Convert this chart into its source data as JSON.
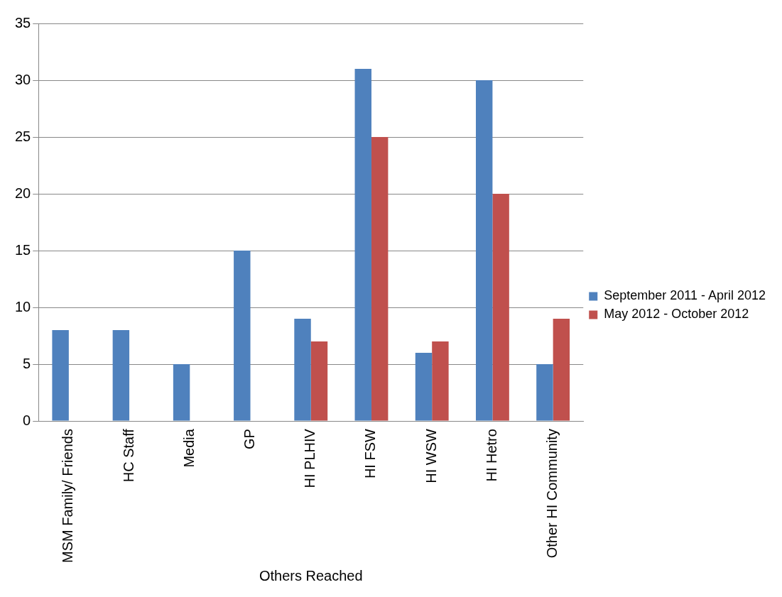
{
  "chart_data": {
    "type": "bar",
    "xlabel": "Others Reached",
    "categories": [
      "MSM Family/ Friends",
      "HC Staff",
      "Media",
      "GP",
      "HI PLHIV",
      "HI FSW",
      "HI WSW",
      "HI Hetro",
      "Other HI Community"
    ],
    "series": [
      {
        "name": "September 2011 - April 2012",
        "color": "#4f81bd",
        "values": [
          8,
          8,
          5,
          15,
          9,
          31,
          6,
          30,
          5
        ]
      },
      {
        "name": "May 2012 - October 2012",
        "color": "#c0504d",
        "values": [
          null,
          null,
          null,
          null,
          7,
          25,
          7,
          20,
          9
        ]
      }
    ],
    "ylim": [
      0,
      35
    ],
    "yticks": [
      0,
      5,
      10,
      15,
      20,
      25,
      30,
      35
    ],
    "grid": "y",
    "legend": "right"
  }
}
